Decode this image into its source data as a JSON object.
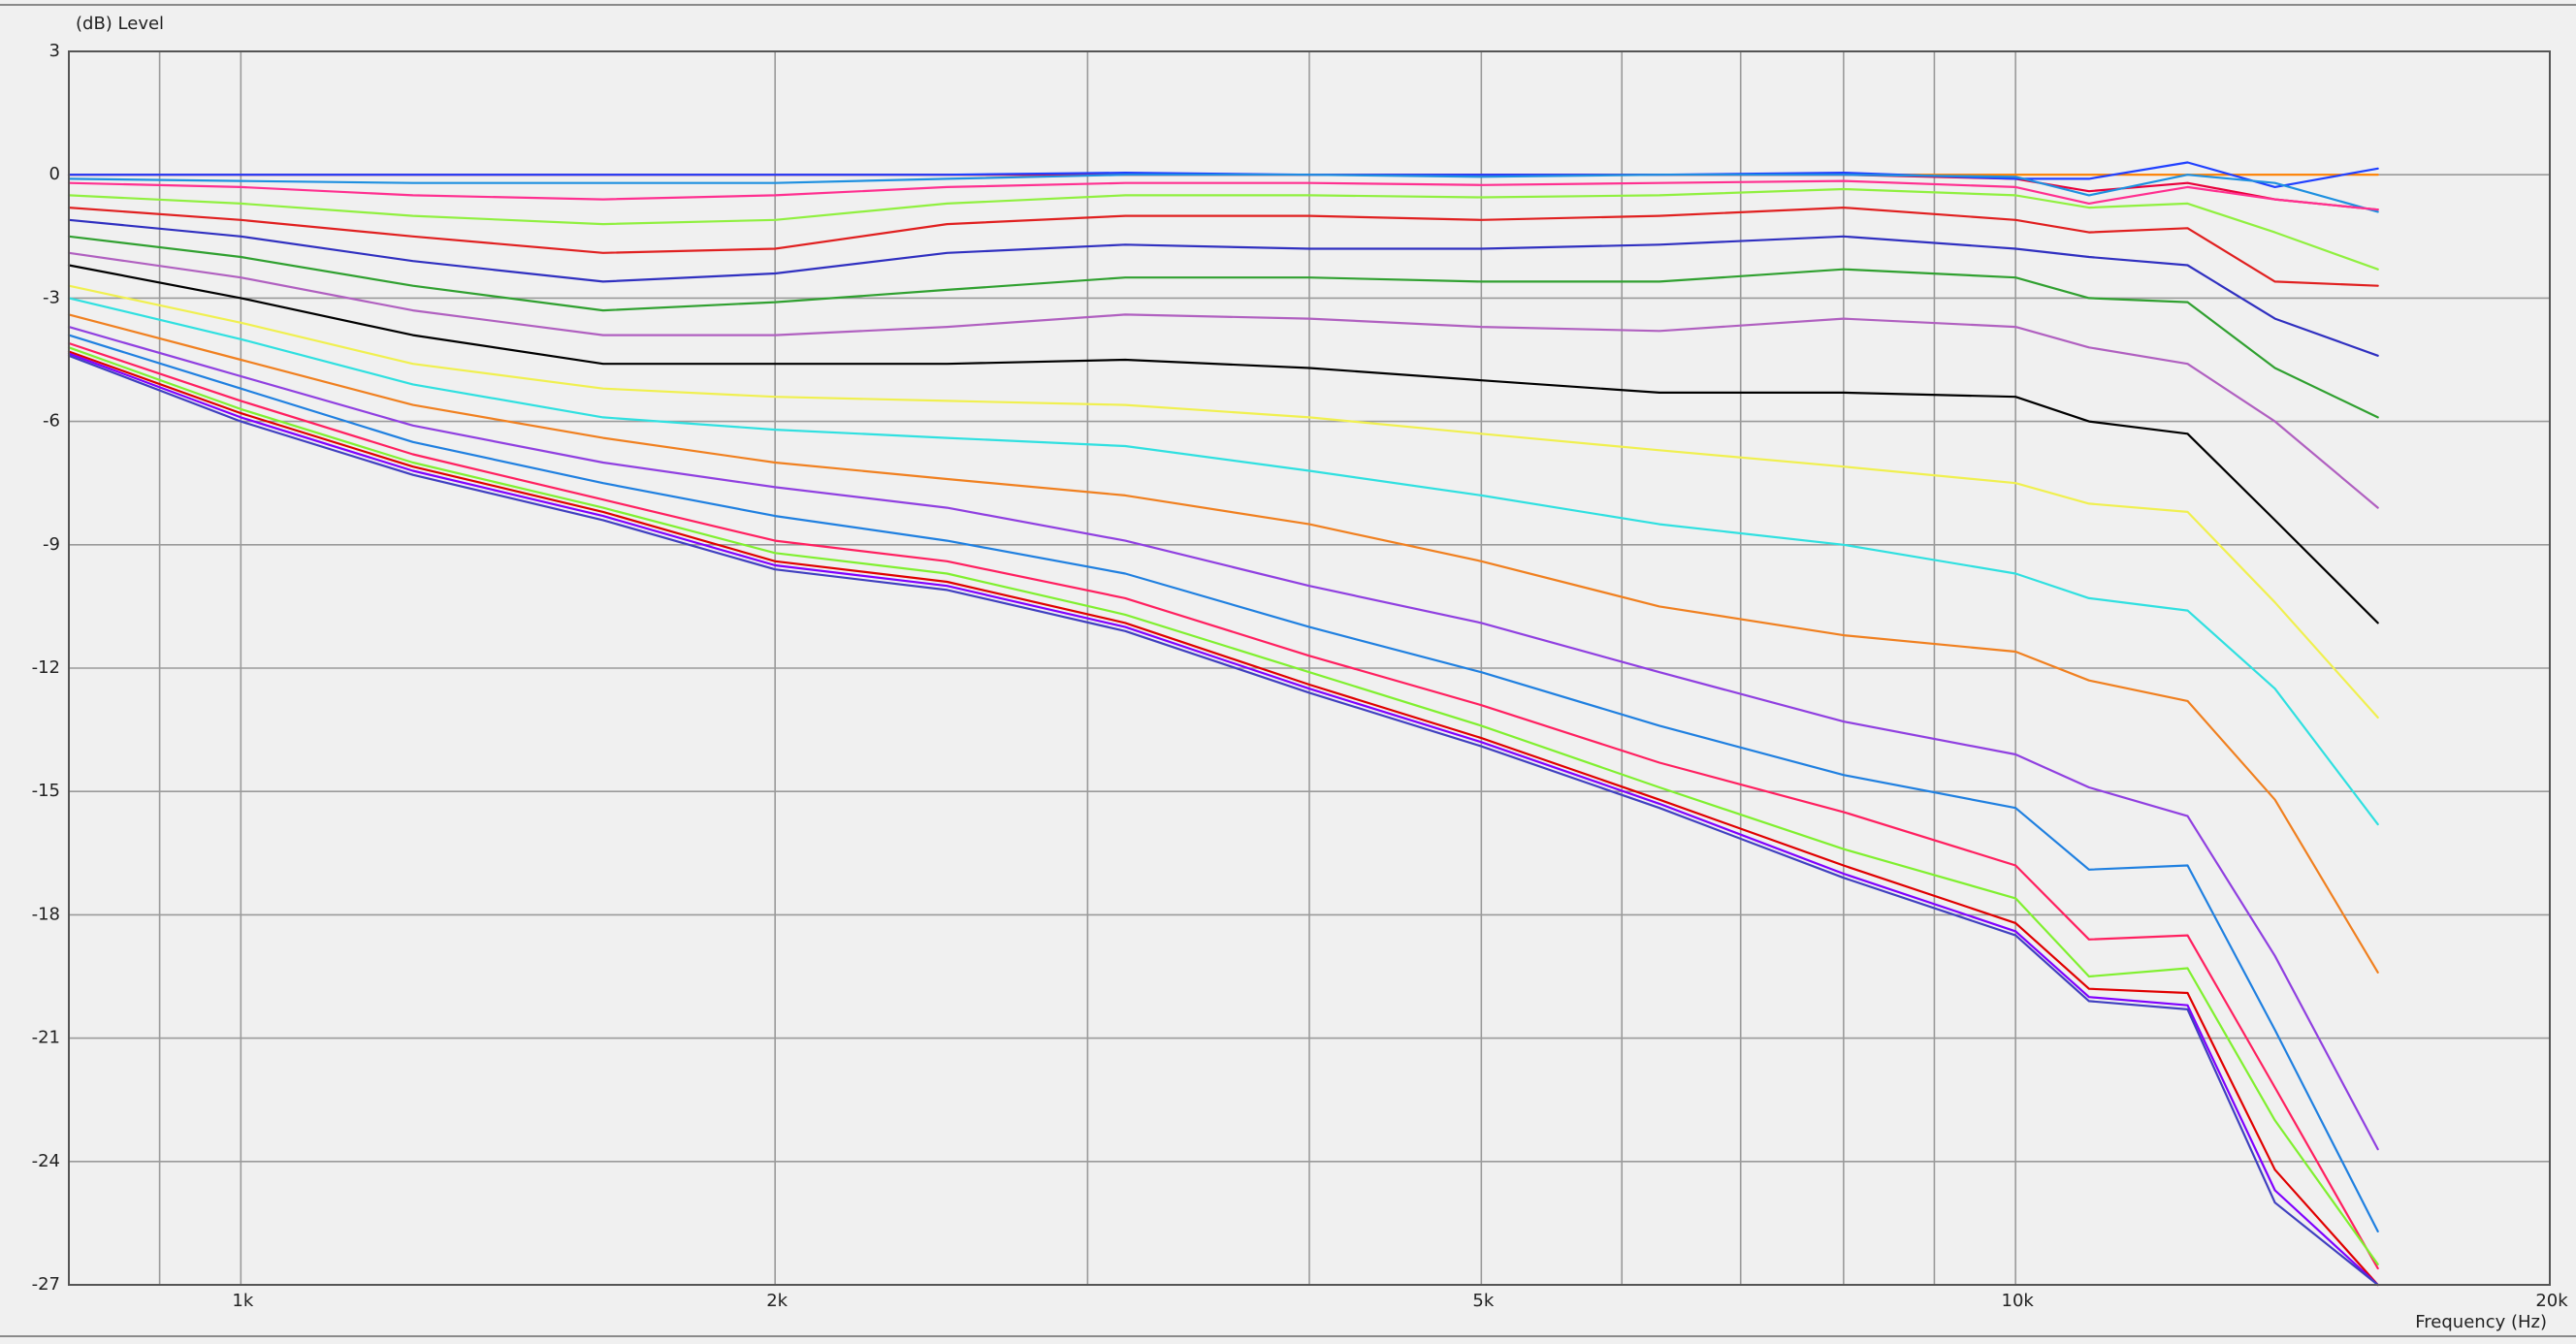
{
  "chart_data": {
    "type": "line",
    "y_label": "(dB)  Level",
    "x_label": "Frequency  (Hz)",
    "xscale": "log",
    "xlim": [
      800,
      20000
    ],
    "xticks": [
      {
        "value": 1000,
        "label": "1k"
      },
      {
        "value": 2000,
        "label": "2k"
      },
      {
        "value": 5000,
        "label": "5k"
      },
      {
        "value": 10000,
        "label": "10k"
      },
      {
        "value": 20000,
        "label": "20k"
      }
    ],
    "xgrid": [
      900,
      3000,
      4000,
      6000,
      7000,
      8000,
      9000
    ],
    "ylim": [
      -27,
      3
    ],
    "yticks": [
      3,
      0,
      -3,
      -6,
      -9,
      -12,
      -15,
      -18,
      -21,
      -24,
      -27
    ],
    "grid": true,
    "x": [
      800,
      1000,
      1250,
      1600,
      2000,
      2500,
      3150,
      4000,
      5000,
      6300,
      8000,
      10000,
      11000,
      12500,
      14000,
      16000
    ],
    "series": [
      {
        "color": "#ff8000",
        "values": [
          0,
          0,
          0,
          0,
          0,
          0,
          0,
          0,
          0,
          0,
          0,
          0,
          0,
          0,
          0,
          0
        ]
      },
      {
        "color": "#e8003a",
        "values": [
          0,
          0,
          0,
          0,
          0,
          0,
          0,
          0,
          0,
          0,
          0,
          -0.1,
          -0.4,
          -0.2,
          -0.6,
          -0.85
        ]
      },
      {
        "color": "#2040ff",
        "values": [
          0,
          0,
          0,
          0,
          0,
          0,
          0.05,
          0,
          0,
          0,
          0.05,
          -0.1,
          -0.1,
          0.3,
          -0.3,
          0.15
        ]
      },
      {
        "color": "#1e90e0",
        "values": [
          -0.1,
          -0.15,
          -0.2,
          -0.2,
          -0.2,
          -0.1,
          0,
          0,
          -0.05,
          0,
          0,
          -0.05,
          -0.5,
          0,
          -0.2,
          -0.9
        ]
      },
      {
        "color": "#ff3090",
        "values": [
          -0.2,
          -0.3,
          -0.5,
          -0.6,
          -0.5,
          -0.3,
          -0.2,
          -0.2,
          -0.25,
          -0.2,
          -0.15,
          -0.3,
          -0.7,
          -0.3,
          -0.6,
          -0.85
        ]
      },
      {
        "color": "#90f040",
        "values": [
          -0.5,
          -0.7,
          -1.0,
          -1.2,
          -1.1,
          -0.7,
          -0.5,
          -0.5,
          -0.55,
          -0.5,
          -0.35,
          -0.5,
          -0.8,
          -0.7,
          -1.4,
          -2.3
        ]
      },
      {
        "color": "#e02020",
        "values": [
          -0.8,
          -1.1,
          -1.5,
          -1.9,
          -1.8,
          -1.2,
          -1.0,
          -1.0,
          -1.1,
          -1.0,
          -0.8,
          -1.1,
          -1.4,
          -1.3,
          -2.6,
          -2.7
        ]
      },
      {
        "color": "#3030c0",
        "values": [
          -1.1,
          -1.5,
          -2.1,
          -2.6,
          -2.4,
          -1.9,
          -1.7,
          -1.8,
          -1.8,
          -1.7,
          -1.5,
          -1.8,
          -2.0,
          -2.2,
          -3.5,
          -4.4
        ]
      },
      {
        "color": "#30a030",
        "values": [
          -1.5,
          -2.0,
          -2.7,
          -3.3,
          -3.1,
          -2.8,
          -2.5,
          -2.5,
          -2.6,
          -2.6,
          -2.3,
          -2.5,
          -3.0,
          -3.1,
          -4.7,
          -5.9
        ]
      },
      {
        "color": "#b060c0",
        "values": [
          -1.9,
          -2.5,
          -3.3,
          -3.9,
          -3.9,
          -3.7,
          -3.4,
          -3.5,
          -3.7,
          -3.8,
          -3.5,
          -3.7,
          -4.2,
          -4.6,
          -6.0,
          -8.1
        ]
      },
      {
        "color": "#000000",
        "values": [
          -2.2,
          -3.0,
          -3.9,
          -4.6,
          -4.6,
          -4.6,
          -4.5,
          -4.7,
          -5.0,
          -5.3,
          -5.3,
          -5.4,
          -6.0,
          -6.3,
          -8.4,
          -10.9
        ]
      },
      {
        "color": "#f0f050",
        "values": [
          -2.7,
          -3.6,
          -4.6,
          -5.2,
          -5.4,
          -5.5,
          -5.6,
          -5.9,
          -6.3,
          -6.7,
          -7.1,
          -7.5,
          -8.0,
          -8.2,
          -10.4,
          -13.2
        ]
      },
      {
        "color": "#30e0e0",
        "values": [
          -3.0,
          -4.0,
          -5.1,
          -5.9,
          -6.2,
          -6.4,
          -6.6,
          -7.2,
          -7.8,
          -8.5,
          -9.0,
          -9.7,
          -10.3,
          -10.6,
          -12.5,
          -15.8
        ]
      },
      {
        "color": "#f08020",
        "values": [
          -3.4,
          -4.5,
          -5.6,
          -6.4,
          -7.0,
          -7.4,
          -7.8,
          -8.5,
          -9.4,
          -10.5,
          -11.2,
          -11.6,
          -12.3,
          -12.8,
          -15.2,
          -19.4
        ]
      },
      {
        "color": "#9040e0",
        "values": [
          -3.7,
          -4.9,
          -6.1,
          -7.0,
          -7.6,
          -8.1,
          -8.9,
          -10.0,
          -10.9,
          -12.1,
          -13.3,
          -14.1,
          -14.9,
          -15.6,
          -19.0,
          -23.7
        ]
      },
      {
        "color": "#2080e0",
        "values": [
          -3.9,
          -5.2,
          -6.5,
          -7.5,
          -8.3,
          -8.9,
          -9.7,
          -11.0,
          -12.1,
          -13.4,
          -14.6,
          -15.4,
          -16.9,
          -16.8,
          -20.8,
          -25.7
        ]
      },
      {
        "color": "#ff2060",
        "values": [
          -4.1,
          -5.5,
          -6.8,
          -7.9,
          -8.9,
          -9.4,
          -10.3,
          -11.7,
          -12.9,
          -14.3,
          -15.5,
          -16.8,
          -18.6,
          -18.5,
          -22.2,
          -26.6
        ]
      },
      {
        "color": "#80f030",
        "values": [
          -4.2,
          -5.7,
          -7.0,
          -8.1,
          -9.2,
          -9.7,
          -10.7,
          -12.1,
          -13.4,
          -14.9,
          -16.4,
          -17.6,
          -19.5,
          -19.3,
          -23.0,
          -26.5
        ]
      },
      {
        "color": "#e00000",
        "values": [
          -4.3,
          -5.8,
          -7.1,
          -8.2,
          -9.4,
          -9.9,
          -10.9,
          -12.4,
          -13.7,
          -15.2,
          -16.8,
          -18.2,
          -19.8,
          -19.9,
          -24.2,
          -27
        ]
      },
      {
        "color": "#8000ff",
        "values": [
          -4.35,
          -5.9,
          -7.2,
          -8.3,
          -9.5,
          -10.0,
          -11.0,
          -12.5,
          -13.8,
          -15.3,
          -17.0,
          -18.4,
          -20.0,
          -20.2,
          -24.7,
          -27
        ]
      },
      {
        "color": "#4040c0",
        "values": [
          -4.4,
          -6.0,
          -7.3,
          -8.4,
          -9.6,
          -10.1,
          -11.1,
          -12.6,
          -13.9,
          -15.4,
          -17.1,
          -18.5,
          -20.1,
          -20.3,
          -25.0,
          -27
        ]
      }
    ]
  }
}
